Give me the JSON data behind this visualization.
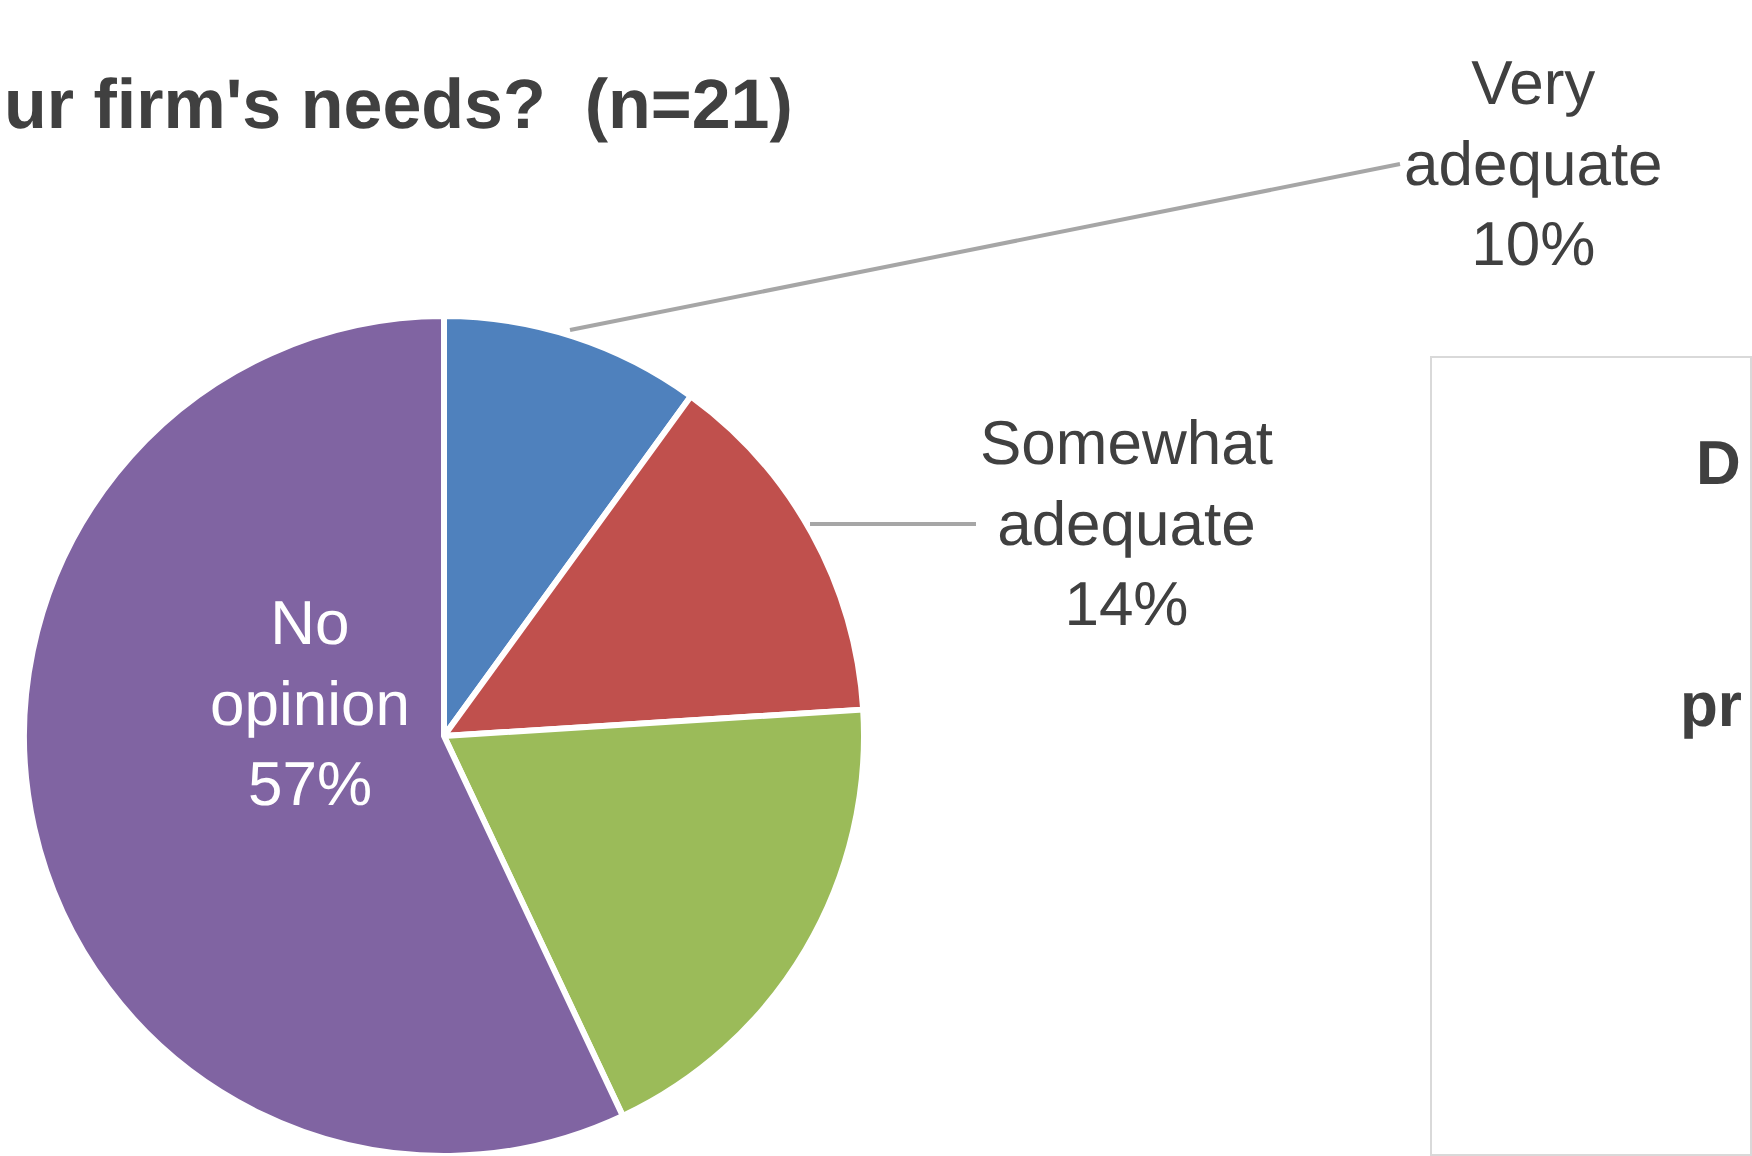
{
  "chart_data": {
    "type": "pie",
    "title": "ur firm's needs?  (n=21)",
    "categories": [
      "Very adequate",
      "Somewhat adequate",
      null,
      "No opinion"
    ],
    "values": [
      10,
      14,
      19,
      57
    ],
    "value_labels": [
      "10%",
      "14%",
      null,
      "57%"
    ],
    "colors": [
      "#4f81bd",
      "#c0504d",
      "#9bbb59",
      "#8064a2"
    ],
    "legend": false,
    "annotations": [
      "D",
      "pr"
    ]
  }
}
